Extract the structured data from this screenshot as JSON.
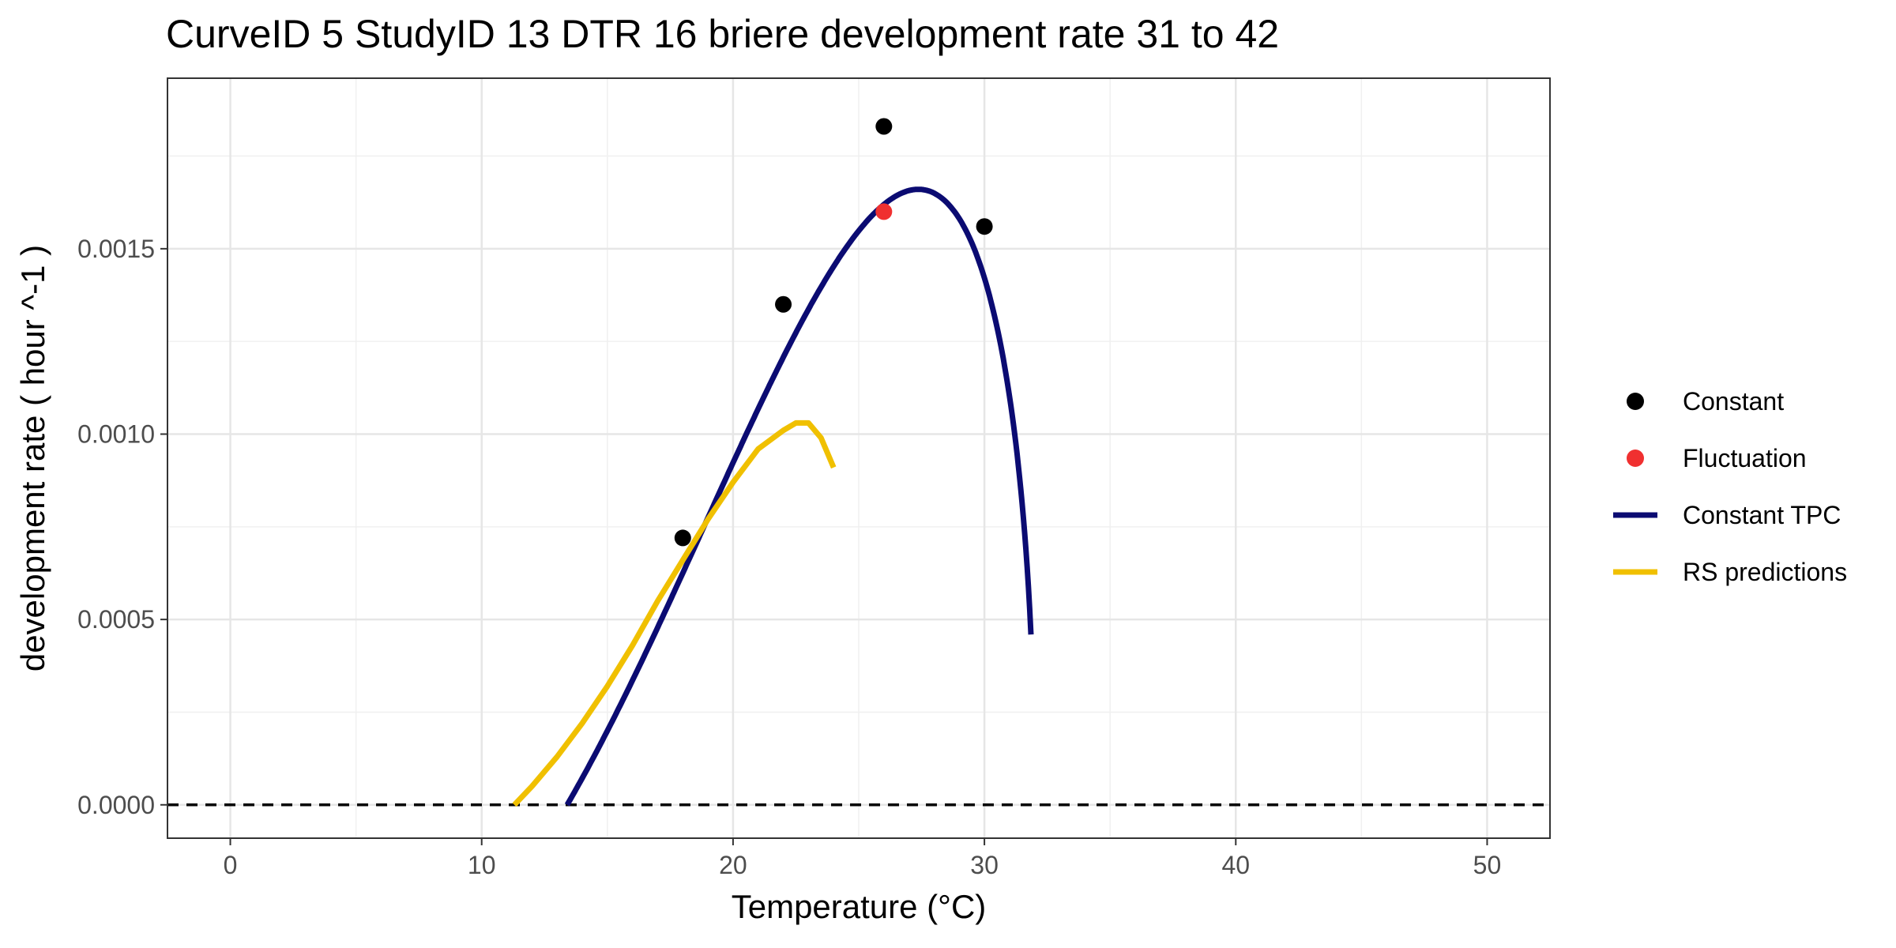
{
  "chart_data": {
    "type": "line",
    "title": "CurveID 5 StudyID 13 DTR 16 briere development rate 31 to 42",
    "xlabel": "Temperature (°C)",
    "ylabel": "development rate ( hour ^-1 )",
    "xlim": [
      -2.5,
      52.5
    ],
    "ylim": [
      -9e-05,
      0.00196
    ],
    "x_ticks": [
      "0",
      "10",
      "20",
      "30",
      "40",
      "50"
    ],
    "y_ticks": [
      "0.0000",
      "0.0005",
      "0.0010",
      "0.0015"
    ],
    "grid": true,
    "legend_position": "right",
    "reference_line": {
      "y": 0,
      "style": "dashed"
    },
    "series": [
      {
        "name": "Constant",
        "kind": "points",
        "color": "#000000",
        "points": [
          [
            18,
            0.00072
          ],
          [
            22,
            0.00135
          ],
          [
            26,
            0.00183
          ],
          [
            30,
            0.00156
          ]
        ]
      },
      {
        "name": "Fluctuation",
        "kind": "points",
        "color": "#f03030",
        "points": [
          [
            26,
            0.0016
          ]
        ]
      },
      {
        "name": "Constant TPC",
        "kind": "line",
        "color": "#0b0b72",
        "model": "briere",
        "params": {
          "a": 2.018e-06,
          "tmin": 13.4,
          "tmax": 32.0
        },
        "x_range": [
          13.4,
          31.85
        ]
      },
      {
        "name": "RS predictions",
        "kind": "line",
        "color": "#f0c000",
        "points": [
          [
            11.3,
            0.0
          ],
          [
            12,
            5e-05
          ],
          [
            13,
            0.00013
          ],
          [
            14,
            0.00022
          ],
          [
            15,
            0.00032
          ],
          [
            16,
            0.00043
          ],
          [
            17,
            0.00055
          ],
          [
            18,
            0.00066
          ],
          [
            19,
            0.00077
          ],
          [
            20,
            0.00087
          ],
          [
            21,
            0.00096
          ],
          [
            22,
            0.00101
          ],
          [
            22.5,
            0.00103
          ],
          [
            23,
            0.00103
          ],
          [
            23.5,
            0.00099
          ],
          [
            24,
            0.00091
          ]
        ]
      }
    ]
  },
  "legend": {
    "items": [
      {
        "label": "Constant",
        "kind": "point",
        "color": "#000000"
      },
      {
        "label": "Fluctuation",
        "kind": "point",
        "color": "#f03030"
      },
      {
        "label": "Constant TPC",
        "kind": "line",
        "color": "#0b0b72"
      },
      {
        "label": "RS predictions",
        "kind": "line",
        "color": "#f0c000"
      }
    ]
  }
}
